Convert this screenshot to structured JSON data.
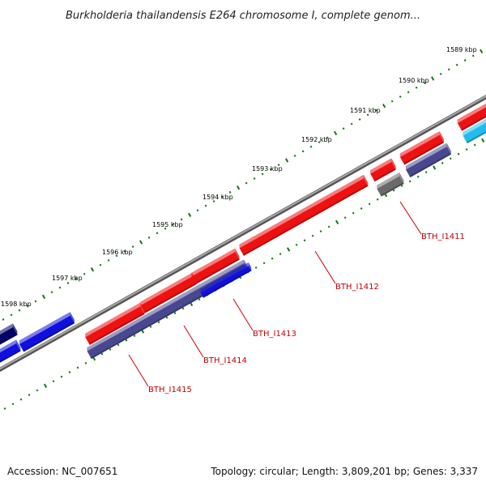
{
  "title": "Burkholderia thailandensis E264 chromosome I, complete genom...",
  "scale_labels": [
    "1589 kbp",
    "1590 kbp",
    "1591 kbp",
    "1592 kbp",
    "1593 kbp",
    "1594 kbp",
    "1595 kbp",
    "1596 kbp",
    "1597 kbp",
    "1598 kbp"
  ],
  "gene_labels": [
    "BTH_I1411",
    "BTH_I1412",
    "BTH_I1413",
    "BTH_I1414",
    "BTH_I1415"
  ],
  "footer": {
    "accession": "Accession: NC_007651",
    "summary": "Topology: circular; Length: 3,809,201 bp; Genes: 3,337"
  },
  "colors": {
    "forward_cds": "#ee1111",
    "reverse_cds": "#484890",
    "blue_cds": "#1010dd",
    "dark_navy": "#000066",
    "cyan_cds": "#22bbee",
    "pseudo": "#6a6a6a",
    "backbone": "#7f7f7f",
    "ticks": "#117711",
    "label_line": "#cc0000"
  }
}
